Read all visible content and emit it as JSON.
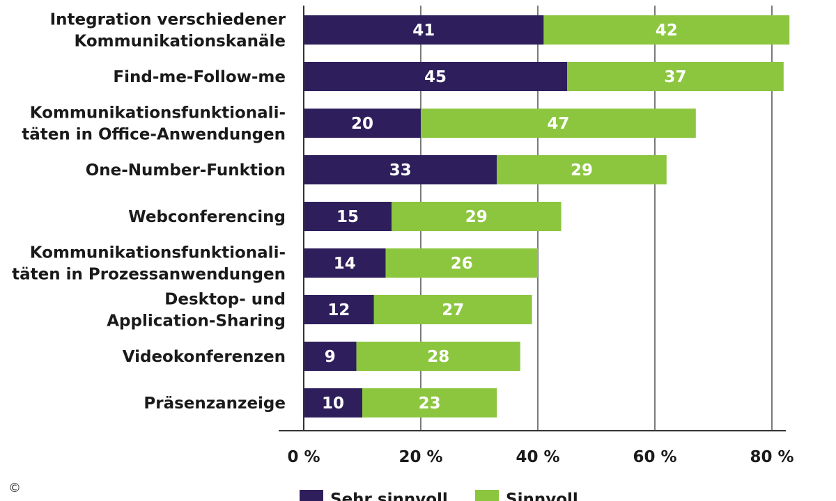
{
  "chart_data": {
    "type": "bar",
    "orientation": "horizontal",
    "stacked": true,
    "categories": [
      [
        "Integration verschiedener",
        "Kommunikationskanäle"
      ],
      [
        "Find-me-Follow-me"
      ],
      [
        "Kommunikationsfunktionali-",
        "täten in Office-Anwendungen"
      ],
      [
        "One-Number-Funktion"
      ],
      [
        "Webconferencing"
      ],
      [
        "Kommunikationsfunktionali-",
        "täten in Prozessanwendungen"
      ],
      [
        "Desktop- und",
        "Application-Sharing"
      ],
      [
        "Videokonferenzen"
      ],
      [
        "Präsenzanzeige"
      ]
    ],
    "series": [
      {
        "name": "Sehr sinnvoll",
        "color": "#2e1f5c",
        "values": [
          41,
          45,
          20,
          33,
          15,
          14,
          12,
          9,
          10
        ]
      },
      {
        "name": "Sinnvoll",
        "color": "#8cc63f",
        "values": [
          42,
          37,
          47,
          29,
          29,
          26,
          27,
          28,
          23
        ]
      }
    ],
    "x_ticks": [
      "0 %",
      "20 %",
      "40 %",
      "60 %",
      "80 %"
    ],
    "x_tick_values": [
      0,
      20,
      40,
      60,
      80
    ],
    "xlim": [
      0,
      83
    ],
    "grid": "vertical",
    "legend_position": "bottom"
  },
  "copyright_symbol": "©"
}
